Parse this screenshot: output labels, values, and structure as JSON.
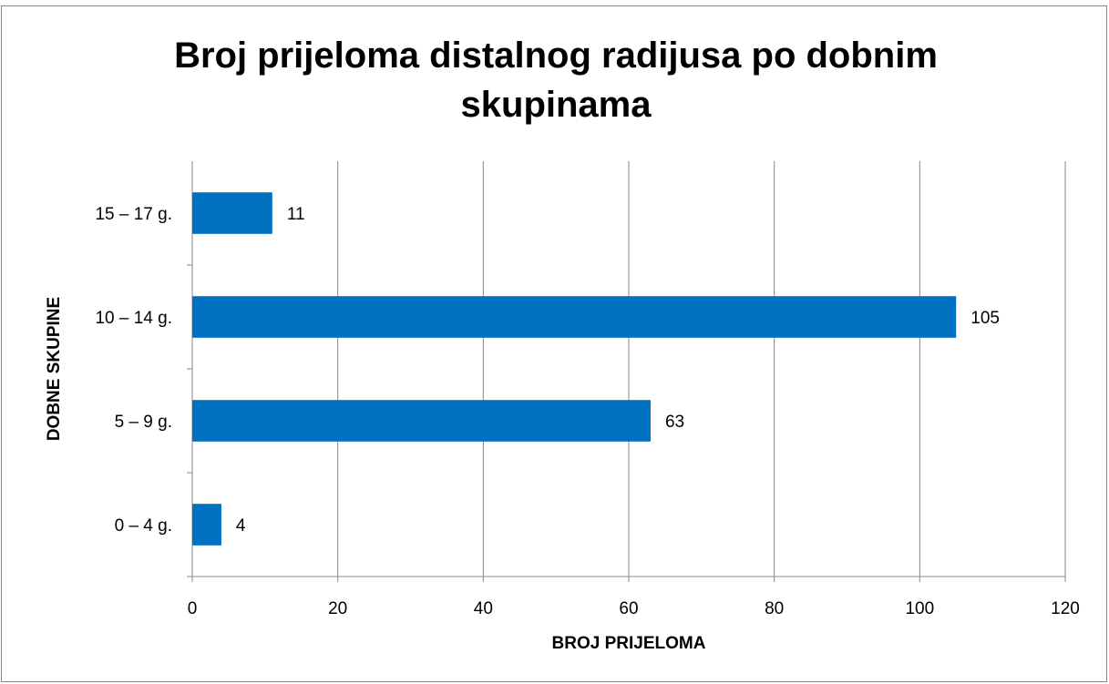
{
  "chart_data": {
    "type": "bar",
    "orientation": "horizontal",
    "title": "Broj prijeloma distalnog radijusa po dobnim skupinama",
    "x_label": "BROJ PRIJELOMA",
    "y_label": "DOBNE SKUPINE",
    "categories": [
      "0 – 4 g.",
      "5 – 9 g.",
      "10 – 14 g.",
      "15 – 17 g."
    ],
    "values": [
      4,
      63,
      105,
      11
    ],
    "color": "#0070c0",
    "xlim": [
      0,
      120
    ],
    "xticks": [
      0,
      20,
      40,
      60,
      80,
      100,
      120
    ],
    "grid": true
  }
}
